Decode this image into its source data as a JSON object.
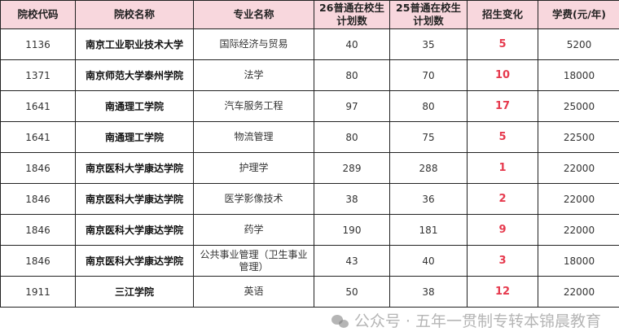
{
  "headers": [
    "院校代码",
    "院校名称",
    "专业名称",
    "26普通在校生计划数",
    "25普通在校生计划数",
    "招生变化",
    "学费(元/年)"
  ],
  "rows": [
    {
      "code": "1136",
      "school": "南京工业职业技术大学",
      "major": "国际经济与贸易",
      "plan26": "40",
      "plan25": "35",
      "change": "5",
      "fee": "5200"
    },
    {
      "code": "1371",
      "school": "南京师范大学泰州学院",
      "major": "法学",
      "plan26": "80",
      "plan25": "70",
      "change": "10",
      "fee": "18000"
    },
    {
      "code": "1641",
      "school": "南通理工学院",
      "major": "汽车服务工程",
      "plan26": "97",
      "plan25": "80",
      "change": "17",
      "fee": "25000"
    },
    {
      "code": "1641",
      "school": "南通理工学院",
      "major": "物流管理",
      "plan26": "80",
      "plan25": "75",
      "change": "5",
      "fee": "22500"
    },
    {
      "code": "1846",
      "school": "南京医科大学康达学院",
      "major": "护理学",
      "plan26": "289",
      "plan25": "288",
      "change": "1",
      "fee": "22000"
    },
    {
      "code": "1846",
      "school": "南京医科大学康达学院",
      "major": "医学影像技术",
      "plan26": "38",
      "plan25": "36",
      "change": "2",
      "fee": "22000"
    },
    {
      "code": "1846",
      "school": "南京医科大学康达学院",
      "major": "药学",
      "plan26": "190",
      "plan25": "181",
      "change": "9",
      "fee": "22000"
    },
    {
      "code": "1846",
      "school": "南京医科大学康达学院",
      "major": "公共事业管理（卫生事业管理）",
      "plan26": "43",
      "plan25": "40",
      "change": "3",
      "fee": "18000"
    },
    {
      "code": "1911",
      "school": "三江学院",
      "major": "英语",
      "plan26": "50",
      "plan25": "38",
      "change": "12",
      "fee": "22000"
    }
  ],
  "watermark": "公众号 · 五年一贯制专转本锦晨教育",
  "colors": {
    "header_bg": "#f8d7dd",
    "change_text": "#e6394d"
  }
}
